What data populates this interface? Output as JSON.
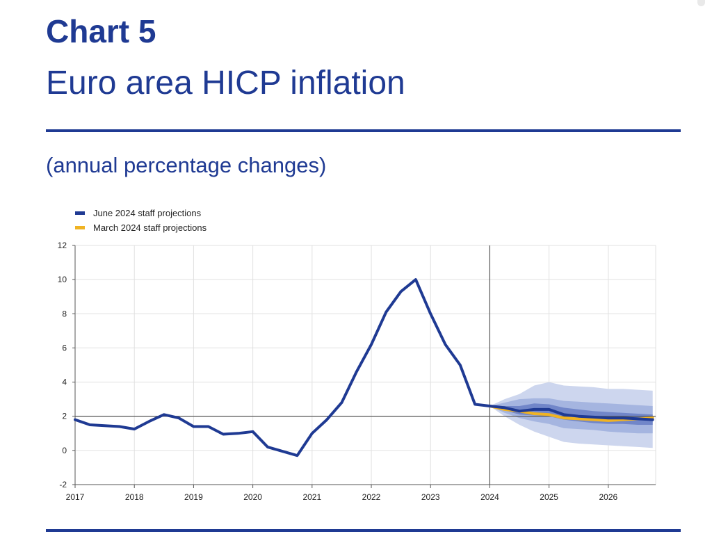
{
  "header": {
    "chart_number": "Chart 5",
    "title": "Euro area HICP inflation",
    "subtitle": "(annual percentage changes)"
  },
  "colors": {
    "brand": "#1f3a93",
    "june_line": "#1f3a93",
    "march_line": "#f0b323",
    "band_outer": "#cdd6ee",
    "band_mid": "#a5b5e0",
    "band_inner": "#7186c9",
    "grid": "#e0e0e0"
  },
  "chart_data": {
    "type": "line",
    "title": "Euro area HICP inflation",
    "ylabel": "annual percentage changes",
    "xlabel": "",
    "xlim": [
      2017,
      2026.8
    ],
    "ylim": [
      -2,
      12
    ],
    "x_ticks": [
      "2017",
      "2018",
      "2019",
      "2020",
      "2021",
      "2022",
      "2023",
      "2024",
      "2025",
      "2026"
    ],
    "y_ticks": [
      "-2",
      "0",
      "2",
      "4",
      "6",
      "8",
      "10",
      "12"
    ],
    "grid": true,
    "legend_position": "top-left",
    "reference_lines": {
      "horizontal_y": 2,
      "vertical_x": 2024
    },
    "legend": [
      "June 2024 staff projections",
      "March 2024 staff projections"
    ],
    "series": [
      {
        "name": "June 2024 staff projections",
        "x": [
          2017.0,
          2017.25,
          2017.5,
          2017.75,
          2018.0,
          2018.25,
          2018.5,
          2018.75,
          2019.0,
          2019.25,
          2019.5,
          2019.75,
          2020.0,
          2020.25,
          2020.5,
          2020.75,
          2021.0,
          2021.25,
          2021.5,
          2021.75,
          2022.0,
          2022.25,
          2022.5,
          2022.75,
          2023.0,
          2023.25,
          2023.5,
          2023.75,
          2024.0,
          2024.25,
          2024.5,
          2024.75,
          2025.0,
          2025.25,
          2025.5,
          2025.75,
          2026.0,
          2026.25,
          2026.5,
          2026.75
        ],
        "values": [
          1.8,
          1.5,
          1.45,
          1.4,
          1.25,
          1.7,
          2.1,
          1.9,
          1.4,
          1.4,
          0.95,
          1.0,
          1.1,
          0.2,
          -0.05,
          -0.3,
          1.0,
          1.8,
          2.8,
          4.6,
          6.2,
          8.1,
          9.3,
          10.0,
          8.0,
          6.2,
          5.0,
          2.7,
          2.6,
          2.5,
          2.3,
          2.4,
          2.4,
          2.1,
          2.0,
          1.95,
          1.9,
          1.9,
          1.85,
          1.8
        ]
      },
      {
        "name": "March 2024 staff projections",
        "x": [
          2024.0,
          2024.25,
          2024.5,
          2024.75,
          2025.0,
          2025.25,
          2025.5,
          2025.75,
          2026.0,
          2026.25,
          2026.5,
          2026.75
        ],
        "values": [
          2.6,
          2.4,
          2.3,
          2.15,
          2.1,
          1.9,
          1.85,
          1.8,
          1.75,
          1.8,
          1.85,
          1.9
        ]
      }
    ],
    "uncertainty_bands": {
      "x": [
        2024.0,
        2024.25,
        2024.5,
        2024.75,
        2025.0,
        2025.25,
        2025.5,
        2025.75,
        2026.0,
        2026.25,
        2026.5,
        2026.75
      ],
      "outer": {
        "lower": [
          2.6,
          2.0,
          1.5,
          1.1,
          0.8,
          0.5,
          0.4,
          0.35,
          0.3,
          0.25,
          0.2,
          0.15
        ],
        "upper": [
          2.6,
          3.0,
          3.3,
          3.8,
          4.0,
          3.8,
          3.75,
          3.7,
          3.6,
          3.6,
          3.55,
          3.5
        ]
      },
      "mid": {
        "lower": [
          2.6,
          2.2,
          1.9,
          1.7,
          1.55,
          1.3,
          1.25,
          1.2,
          1.1,
          1.05,
          1.0,
          1.0
        ],
        "upper": [
          2.6,
          2.8,
          3.0,
          3.05,
          3.05,
          2.9,
          2.85,
          2.8,
          2.75,
          2.7,
          2.65,
          2.6
        ]
      },
      "inner": {
        "lower": [
          2.6,
          2.35,
          2.1,
          2.05,
          2.0,
          1.8,
          1.7,
          1.6,
          1.55,
          1.55,
          1.5,
          1.5
        ],
        "upper": [
          2.6,
          2.6,
          2.6,
          2.75,
          2.7,
          2.5,
          2.4,
          2.3,
          2.25,
          2.2,
          2.15,
          2.1
        ]
      }
    }
  }
}
